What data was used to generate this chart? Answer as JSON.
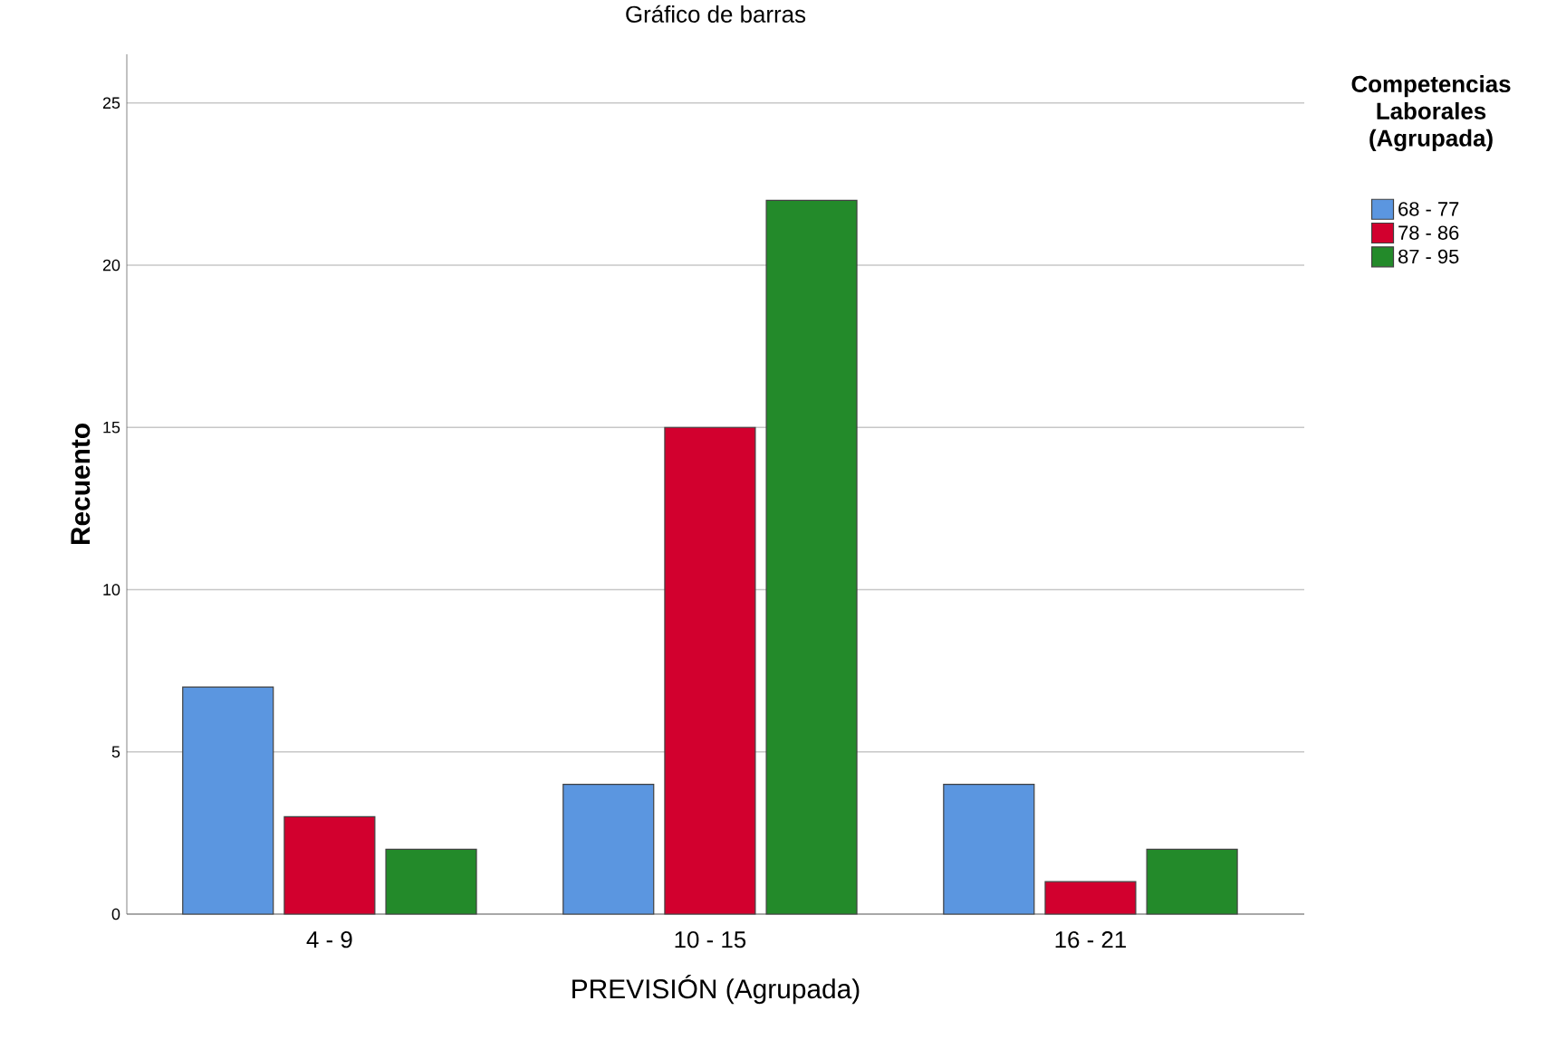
{
  "chart_data": {
    "type": "bar",
    "title": "Gráfico de barras",
    "xlabel": "PREVISIÓN (Agrupada)",
    "ylabel": "Recuento",
    "legend_title": "Competencias Laborales (Agrupada)",
    "categories": [
      "4 - 9",
      "10 - 15",
      "16 - 21"
    ],
    "series": [
      {
        "name": "68 - 77",
        "color": "#5b96e0",
        "values": [
          7,
          4,
          4
        ]
      },
      {
        "name": "78 - 86",
        "color": "#d2002e",
        "values": [
          3,
          15,
          1
        ]
      },
      {
        "name": "87 - 95",
        "color": "#238a2a",
        "values": [
          2,
          22,
          2
        ]
      }
    ],
    "ylim": [
      0,
      26.5
    ],
    "yticks": [
      0,
      5,
      10,
      15,
      20,
      25
    ],
    "grid": "y",
    "legend": "top right"
  }
}
